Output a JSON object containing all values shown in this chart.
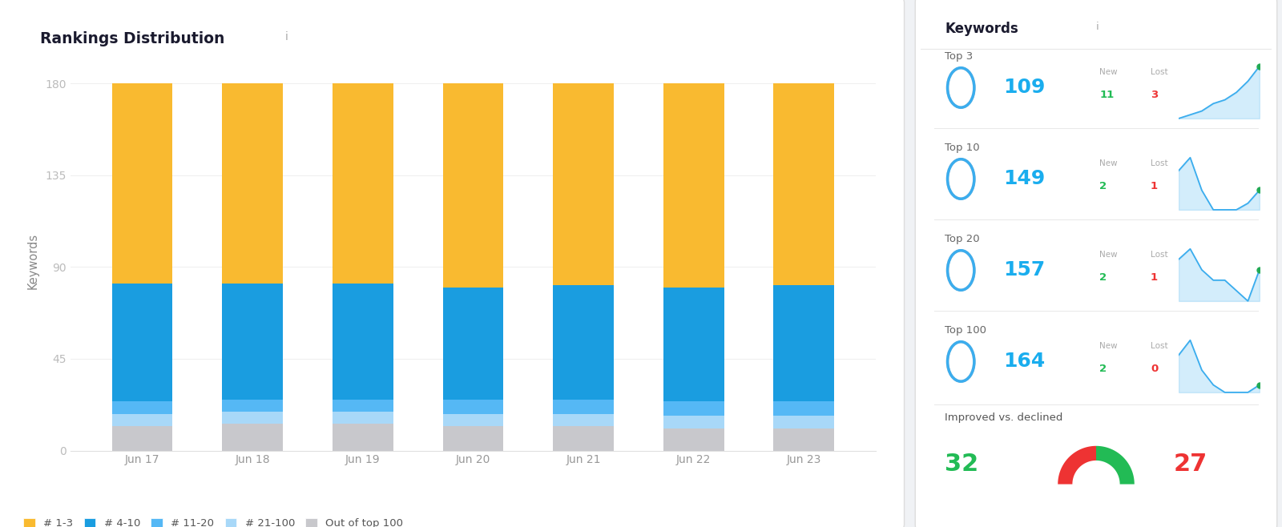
{
  "title": "Rankings Distribution",
  "ylabel": "Keywords",
  "categories": [
    "Jun 17",
    "Jun 18",
    "Jun 19",
    "Jun 20",
    "Jun 21",
    "Jun 22",
    "Jun 23"
  ],
  "segments": {
    "out_of_100": [
      12,
      13,
      13,
      12,
      12,
      11,
      11
    ],
    "rank_21_100": [
      6,
      6,
      6,
      6,
      6,
      6,
      6
    ],
    "rank_11_20": [
      6,
      6,
      6,
      7,
      7,
      7,
      7
    ],
    "rank_4_10": [
      58,
      57,
      57,
      55,
      56,
      56,
      57
    ],
    "rank_1_3": [
      98,
      98,
      98,
      100,
      99,
      100,
      99
    ]
  },
  "seg_order": [
    "out_of_100",
    "rank_21_100",
    "rank_11_20",
    "rank_4_10",
    "rank_1_3"
  ],
  "colors": {
    "out_of_100": "#c8c8cc",
    "rank_21_100": "#a8d8f8",
    "rank_11_20": "#55b8f5",
    "rank_4_10": "#1a9de0",
    "rank_1_3": "#f9ba30"
  },
  "legend_order": [
    "rank_1_3",
    "rank_4_10",
    "rank_11_20",
    "rank_21_100",
    "out_of_100"
  ],
  "legend_labels": [
    "# 1-3",
    "# 4-10",
    "# 11-20",
    "# 21-100",
    "Out of top 100"
  ],
  "yticks": [
    0,
    45,
    90,
    135,
    180
  ],
  "ylim_max": 186,
  "bg_color": "#f0f2f5",
  "title_underline_color": "#7c4dcc",
  "kw_rows": [
    {
      "label": "Top 3",
      "value": "109",
      "new_val": "11",
      "lost_val": "3",
      "spark": [
        145,
        146,
        147,
        149,
        150,
        152,
        155,
        159
      ]
    },
    {
      "label": "Top 10",
      "value": "149",
      "new_val": "2",
      "lost_val": "1",
      "spark": [
        160,
        162,
        157,
        154,
        154,
        154,
        155,
        157
      ]
    },
    {
      "label": "Top 20",
      "value": "157",
      "new_val": "2",
      "lost_val": "1",
      "spark": [
        168,
        169,
        167,
        166,
        166,
        165,
        164,
        167
      ]
    },
    {
      "label": "Top 100",
      "value": "164",
      "new_val": "2",
      "lost_val": "0",
      "spark": [
        172,
        174,
        170,
        168,
        167,
        167,
        167,
        168
      ]
    }
  ],
  "improved": "32",
  "declined": "27"
}
